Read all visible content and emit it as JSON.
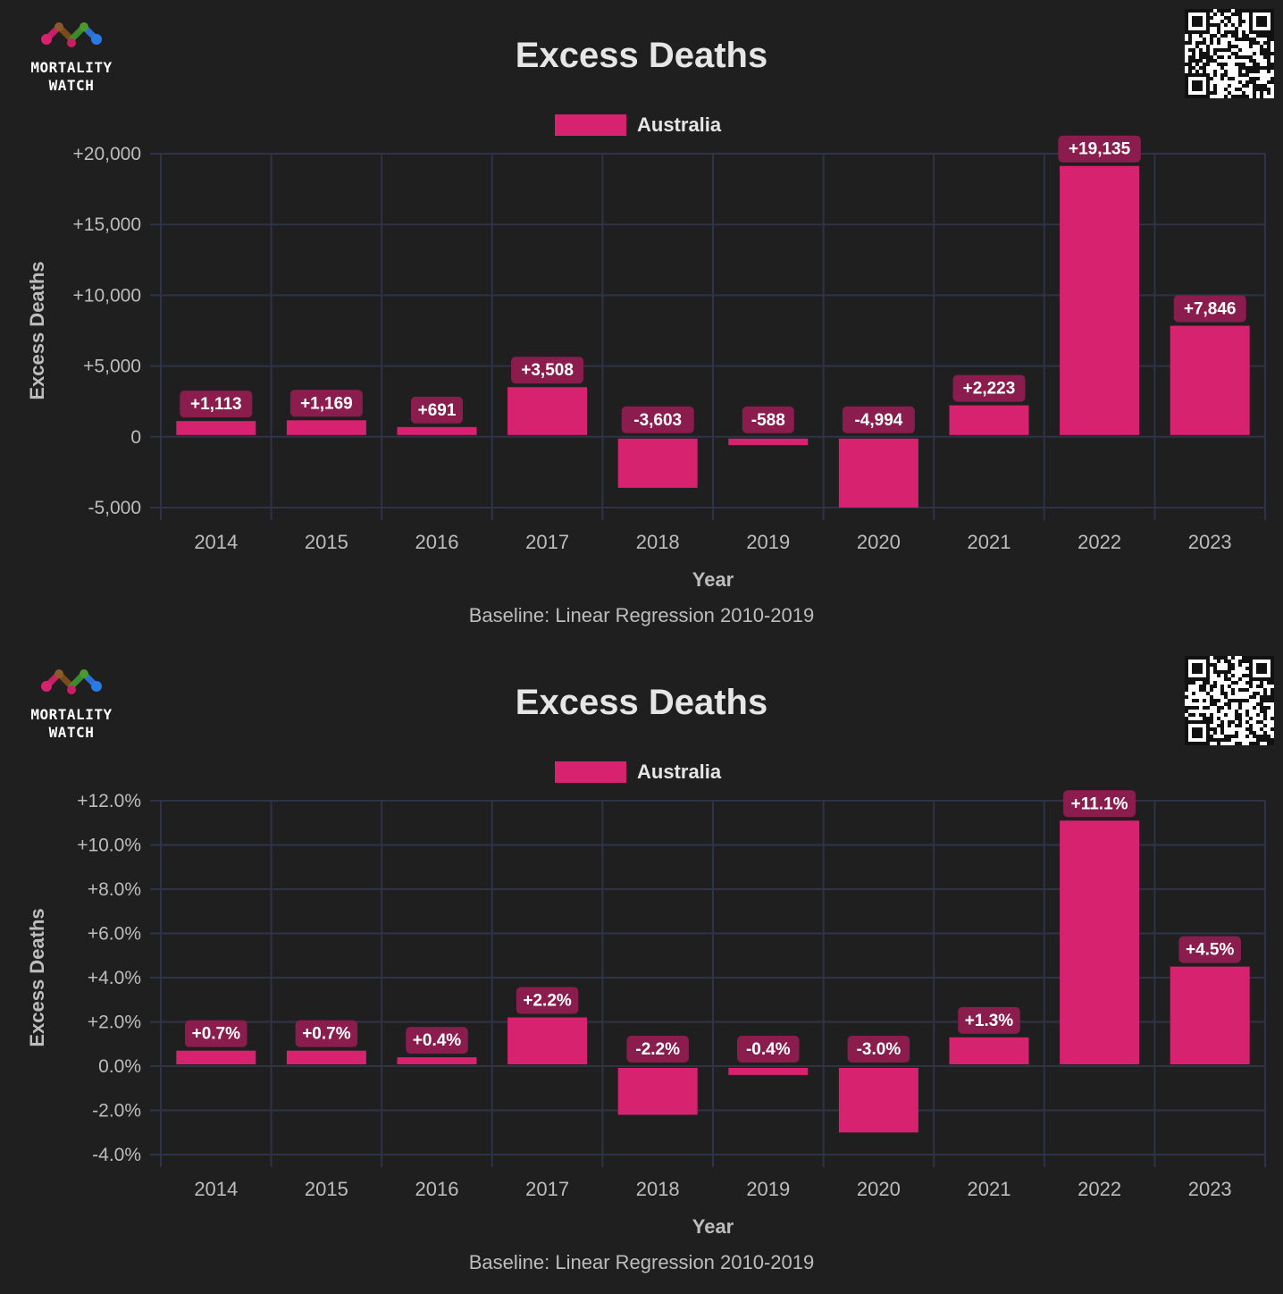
{
  "logo": {
    "line1": "MORTALITY",
    "line2": "WATCH"
  },
  "chart_data": [
    {
      "type": "bar",
      "title": "Excess Deaths",
      "legend": [
        "Australia"
      ],
      "xlabel": "Year",
      "ylabel": "Excess Deaths",
      "note": "Baseline: Linear Regression 2010-2019",
      "categories": [
        "2014",
        "2015",
        "2016",
        "2017",
        "2018",
        "2019",
        "2020",
        "2021",
        "2022",
        "2023"
      ],
      "series": [
        {
          "name": "Australia",
          "color": "#d6226f",
          "values": [
            1113,
            1169,
            691,
            3508,
            -3603,
            -588,
            -4994,
            2223,
            19135,
            7846
          ],
          "labels": [
            "+1,113",
            "+1,169",
            "+691",
            "+3,508",
            "-3,603",
            "-588",
            "-4,994",
            "+2,223",
            "+19,135",
            "+7,846"
          ]
        }
      ],
      "ylim": [
        -5000,
        20000
      ],
      "yticks": [
        20000,
        15000,
        10000,
        5000,
        0,
        -5000
      ],
      "ytick_labels": [
        "+20,000",
        "+15,000",
        "+10,000",
        "+5,000",
        "0",
        "-5,000"
      ],
      "grid": true,
      "legend_position": "top-center"
    },
    {
      "type": "bar",
      "title": "Excess Deaths",
      "legend": [
        "Australia"
      ],
      "xlabel": "Year",
      "ylabel": "Excess Deaths",
      "note": "Baseline: Linear Regression 2010-2019",
      "categories": [
        "2014",
        "2015",
        "2016",
        "2017",
        "2018",
        "2019",
        "2020",
        "2021",
        "2022",
        "2023"
      ],
      "series": [
        {
          "name": "Australia",
          "color": "#d6226f",
          "values": [
            0.7,
            0.7,
            0.4,
            2.2,
            -2.2,
            -0.4,
            -3.0,
            1.3,
            11.1,
            4.5
          ],
          "labels": [
            "+0.7%",
            "+0.7%",
            "+0.4%",
            "+2.2%",
            "-2.2%",
            "-0.4%",
            "-3.0%",
            "+1.3%",
            "+11.1%",
            "+4.5%"
          ]
        }
      ],
      "ylim": [
        -4,
        12
      ],
      "yticks": [
        12,
        10,
        8,
        6,
        4,
        2,
        0,
        -2,
        -4
      ],
      "ytick_labels": [
        "+12.0%",
        "+10.0%",
        "+8.0%",
        "+6.0%",
        "+4.0%",
        "+2.0%",
        "0.0%",
        "-2.0%",
        "-4.0%"
      ],
      "grid": true,
      "legend_position": "top-center"
    }
  ]
}
